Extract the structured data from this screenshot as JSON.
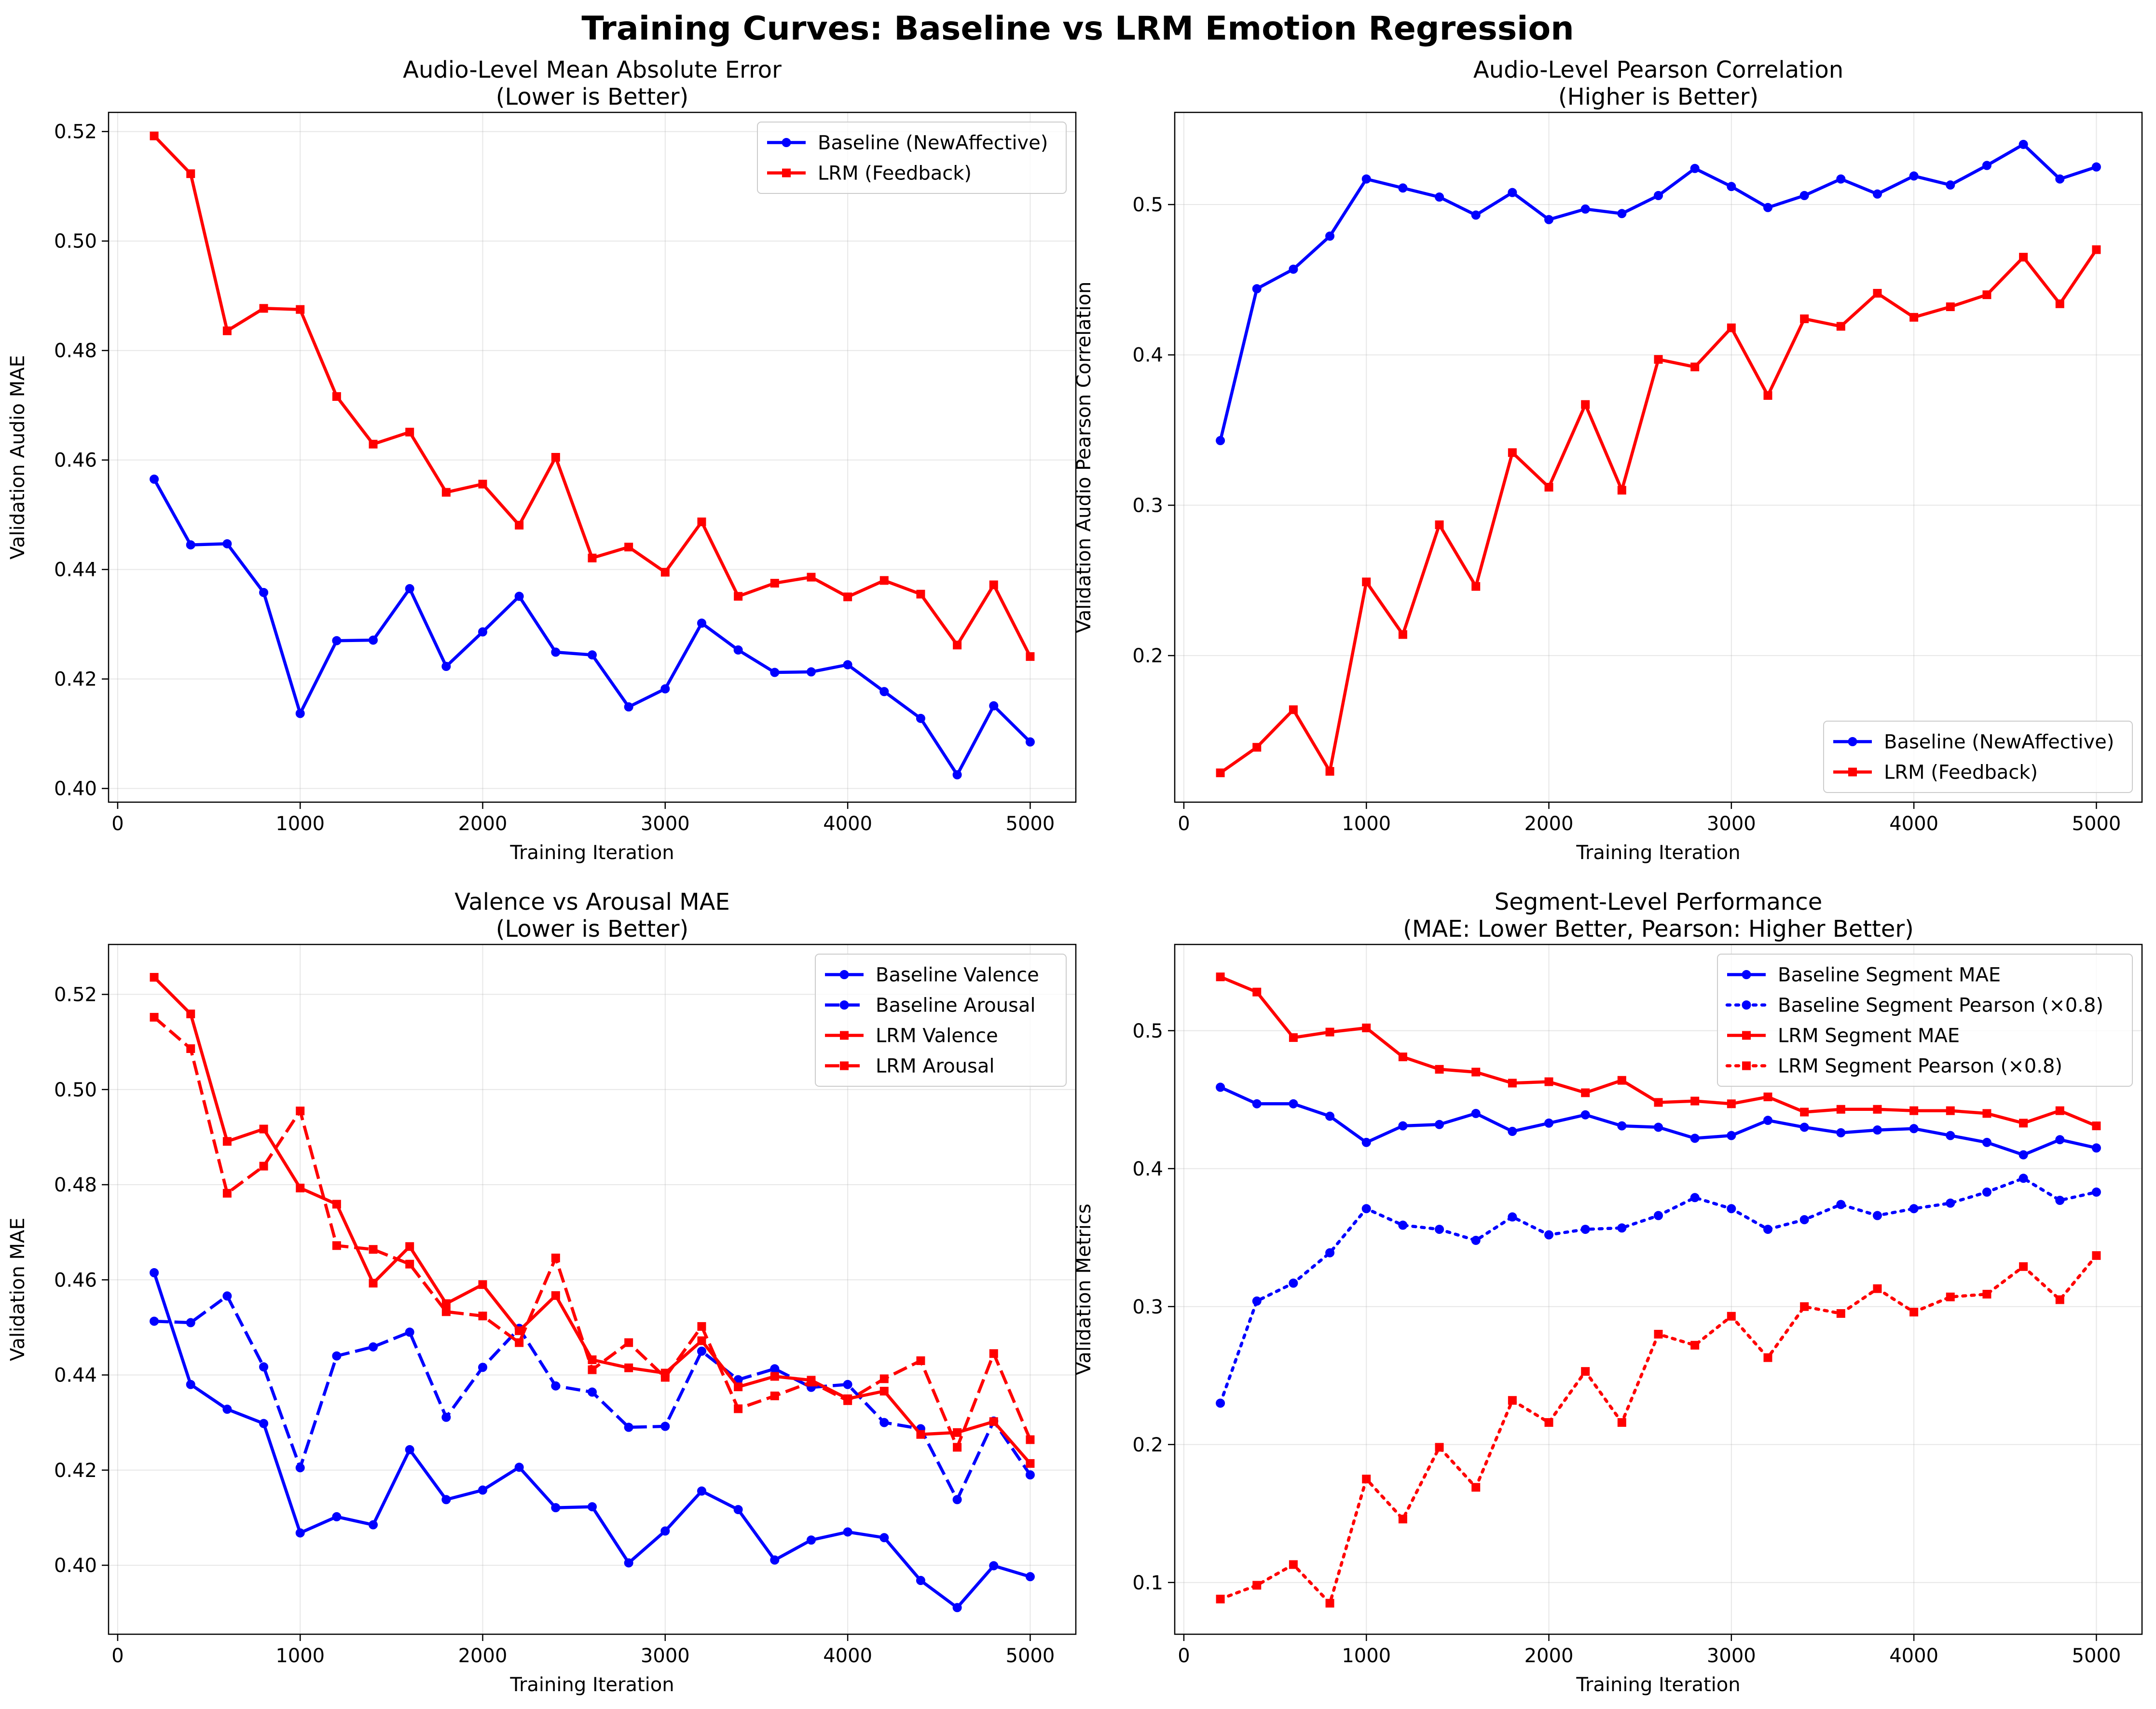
{
  "figure": {
    "title": "Training Curves: Baseline vs LRM Emotion Regression"
  },
  "chart_data": [
    {
      "type": "line",
      "title": "Audio-Level Mean Absolute Error\n(Lower is Better)",
      "xlabel": "Training Iteration",
      "ylabel": "Validation Audio MAE",
      "xlim": [
        -50,
        5250
      ],
      "ylim": [
        0.3975,
        0.5235
      ],
      "xticks": [
        0,
        1000,
        2000,
        3000,
        4000,
        5000
      ],
      "yticks": [
        0.4,
        0.42,
        0.44,
        0.46,
        0.48,
        0.5,
        0.52
      ],
      "ytick_decimals": 2,
      "grid": true,
      "legend": "top-right",
      "x": [
        200,
        400,
        600,
        800,
        1000,
        1200,
        1400,
        1600,
        1800,
        2000,
        2200,
        2400,
        2600,
        2800,
        3000,
        3200,
        3400,
        3600,
        3800,
        4000,
        4200,
        4400,
        4600,
        4800,
        5000
      ],
      "series": [
        {
          "name": "Baseline (NewAffective)",
          "color": "#0000ff",
          "dash": "solid",
          "marker": "circle",
          "values": [
            0.4565,
            0.4445,
            0.4447,
            0.4358,
            0.4137,
            0.427,
            0.4271,
            0.4365,
            0.4223,
            0.4286,
            0.4351,
            0.4249,
            0.4244,
            0.4149,
            0.4182,
            0.4302,
            0.4253,
            0.4212,
            0.4213,
            0.4226,
            0.4177,
            0.4128,
            0.4025,
            0.4151,
            0.4085
          ]
        },
        {
          "name": "LRM (Feedback)",
          "color": "#ff0000",
          "dash": "solid",
          "marker": "square",
          "values": [
            0.5192,
            0.5123,
            0.4836,
            0.4877,
            0.4875,
            0.4716,
            0.4629,
            0.4651,
            0.4541,
            0.4556,
            0.4481,
            0.4605,
            0.4421,
            0.4441,
            0.4395,
            0.4487,
            0.4351,
            0.4375,
            0.4386,
            0.435,
            0.438,
            0.4355,
            0.4262,
            0.4372,
            0.4241
          ]
        }
      ]
    },
    {
      "type": "line",
      "title": "Audio-Level Pearson Correlation\n(Higher is Better)",
      "xlabel": "Training Iteration",
      "ylabel": "Validation Audio Pearson Correlation",
      "xlim": [
        -50,
        5250
      ],
      "ylim": [
        0.1025,
        0.5613
      ],
      "xticks": [
        0,
        1000,
        2000,
        3000,
        4000,
        5000
      ],
      "yticks": [
        0.2,
        0.3,
        0.4,
        0.5
      ],
      "ytick_decimals": 1,
      "grid": true,
      "legend": "bottom-right",
      "x": [
        200,
        400,
        600,
        800,
        1000,
        1200,
        1400,
        1600,
        1800,
        2000,
        2200,
        2400,
        2600,
        2800,
        3000,
        3200,
        3400,
        3600,
        3800,
        4000,
        4200,
        4400,
        4600,
        4800,
        5000
      ],
      "series": [
        {
          "name": "Baseline (NewAffective)",
          "color": "#0000ff",
          "dash": "solid",
          "marker": "circle",
          "values": [
            0.343,
            0.444,
            0.457,
            0.479,
            0.517,
            0.511,
            0.505,
            0.493,
            0.508,
            0.49,
            0.497,
            0.494,
            0.506,
            0.524,
            0.512,
            0.498,
            0.506,
            0.517,
            0.507,
            0.519,
            0.513,
            0.526,
            0.54,
            0.517,
            0.525
          ]
        },
        {
          "name": "LRM (Feedback)",
          "color": "#ff0000",
          "dash": "solid",
          "marker": "square",
          "values": [
            0.122,
            0.139,
            0.164,
            0.123,
            0.249,
            0.214,
            0.287,
            0.246,
            0.335,
            0.312,
            0.367,
            0.31,
            0.397,
            0.392,
            0.418,
            0.373,
            0.424,
            0.419,
            0.441,
            0.425,
            0.432,
            0.44,
            0.465,
            0.434,
            0.47
          ]
        }
      ]
    },
    {
      "type": "line",
      "title": "Valence vs Arousal MAE\n(Lower is Better)",
      "xlabel": "Training Iteration",
      "ylabel": "Validation MAE",
      "xlim": [
        -50,
        5250
      ],
      "ylim": [
        0.3855,
        0.5305
      ],
      "xticks": [
        0,
        1000,
        2000,
        3000,
        4000,
        5000
      ],
      "yticks": [
        0.4,
        0.42,
        0.44,
        0.46,
        0.48,
        0.5,
        0.52
      ],
      "ytick_decimals": 2,
      "grid": true,
      "legend": "top-right",
      "x": [
        200,
        400,
        600,
        800,
        1000,
        1200,
        1400,
        1600,
        1800,
        2000,
        2200,
        2400,
        2600,
        2800,
        3000,
        3200,
        3400,
        3600,
        3800,
        4000,
        4200,
        4400,
        4600,
        4800,
        5000
      ],
      "series": [
        {
          "name": "Baseline Valence",
          "color": "#0000ff",
          "dash": "solid",
          "marker": "circle",
          "values": [
            0.4615,
            0.438,
            0.4328,
            0.4298,
            0.4068,
            0.4102,
            0.4085,
            0.4243,
            0.4138,
            0.4158,
            0.4206,
            0.4121,
            0.4123,
            0.4005,
            0.4072,
            0.4156,
            0.4117,
            0.4011,
            0.4053,
            0.407,
            0.4058,
            0.3968,
            0.3911,
            0.3999,
            0.3976
          ]
        },
        {
          "name": "Baseline Arousal",
          "color": "#0000ff",
          "dash": "dashed",
          "marker": "circle",
          "values": [
            0.4513,
            0.451,
            0.4566,
            0.4417,
            0.4205,
            0.444,
            0.4459,
            0.449,
            0.4311,
            0.4416,
            0.4498,
            0.4377,
            0.4364,
            0.429,
            0.4292,
            0.445,
            0.439,
            0.4413,
            0.4374,
            0.438,
            0.43,
            0.4287,
            0.4138,
            0.4303,
            0.419
          ]
        },
        {
          "name": "LRM Valence",
          "color": "#ff0000",
          "dash": "solid",
          "marker": "square",
          "values": [
            0.5236,
            0.5159,
            0.4891,
            0.4917,
            0.4793,
            0.4759,
            0.4593,
            0.467,
            0.455,
            0.459,
            0.4493,
            0.4567,
            0.4432,
            0.4415,
            0.4404,
            0.4472,
            0.4375,
            0.4397,
            0.4389,
            0.435,
            0.4366,
            0.4275,
            0.4279,
            0.4302,
            0.4214
          ]
        },
        {
          "name": "LRM Arousal",
          "color": "#ff0000",
          "dash": "dashed",
          "marker": "square",
          "values": [
            0.5152,
            0.5086,
            0.4782,
            0.4839,
            0.4955,
            0.4672,
            0.4664,
            0.4633,
            0.4533,
            0.4524,
            0.4468,
            0.4646,
            0.4411,
            0.4468,
            0.4395,
            0.4502,
            0.4329,
            0.4356,
            0.4385,
            0.4346,
            0.4392,
            0.443,
            0.4248,
            0.4445,
            0.4264
          ]
        }
      ]
    },
    {
      "type": "line",
      "title": "Segment-Level Performance\n(MAE: Lower Better, Pearson: Higher Better)",
      "xlabel": "Training Iteration",
      "ylabel": "Validation Metrics",
      "xlim": [
        -50,
        5250
      ],
      "ylim": [
        0.0625,
        0.5625
      ],
      "xticks": [
        0,
        1000,
        2000,
        3000,
        4000,
        5000
      ],
      "yticks": [
        0.1,
        0.2,
        0.3,
        0.4,
        0.5
      ],
      "ytick_decimals": 1,
      "grid": true,
      "legend": "top-right",
      "x": [
        200,
        400,
        600,
        800,
        1000,
        1200,
        1400,
        1600,
        1800,
        2000,
        2200,
        2400,
        2600,
        2800,
        3000,
        3200,
        3400,
        3600,
        3800,
        4000,
        4200,
        4400,
        4600,
        4800,
        5000
      ],
      "series": [
        {
          "name": "Baseline Segment MAE",
          "color": "#0000ff",
          "dash": "solid",
          "marker": "circle",
          "values": [
            0.459,
            0.447,
            0.447,
            0.438,
            0.419,
            0.431,
            0.432,
            0.44,
            0.427,
            0.433,
            0.439,
            0.431,
            0.43,
            0.422,
            0.424,
            0.435,
            0.43,
            0.426,
            0.428,
            0.429,
            0.424,
            0.419,
            0.41,
            0.421,
            0.415
          ]
        },
        {
          "name": "Baseline Segment Pearson (×0.8)",
          "color": "#0000ff",
          "dash": "dotted",
          "marker": "circle",
          "values": [
            0.23,
            0.304,
            0.317,
            0.339,
            0.371,
            0.359,
            0.356,
            0.348,
            0.365,
            0.352,
            0.356,
            0.357,
            0.366,
            0.379,
            0.371,
            0.356,
            0.363,
            0.374,
            0.366,
            0.371,
            0.375,
            0.383,
            0.393,
            0.377,
            0.383
          ]
        },
        {
          "name": "LRM Segment MAE",
          "color": "#ff0000",
          "dash": "solid",
          "marker": "square",
          "values": [
            0.539,
            0.528,
            0.495,
            0.499,
            0.502,
            0.481,
            0.472,
            0.47,
            0.462,
            0.463,
            0.455,
            0.464,
            0.448,
            0.449,
            0.447,
            0.452,
            0.441,
            0.443,
            0.443,
            0.442,
            0.442,
            0.44,
            0.433,
            0.442,
            0.431
          ]
        },
        {
          "name": "LRM Segment Pearson (×0.8)",
          "color": "#ff0000",
          "dash": "dotted",
          "marker": "square",
          "values": [
            0.088,
            0.098,
            0.113,
            0.085,
            0.175,
            0.146,
            0.198,
            0.169,
            0.232,
            0.216,
            0.253,
            0.216,
            0.28,
            0.272,
            0.293,
            0.263,
            0.3,
            0.295,
            0.313,
            0.296,
            0.307,
            0.309,
            0.329,
            0.305,
            0.337
          ]
        }
      ]
    }
  ]
}
